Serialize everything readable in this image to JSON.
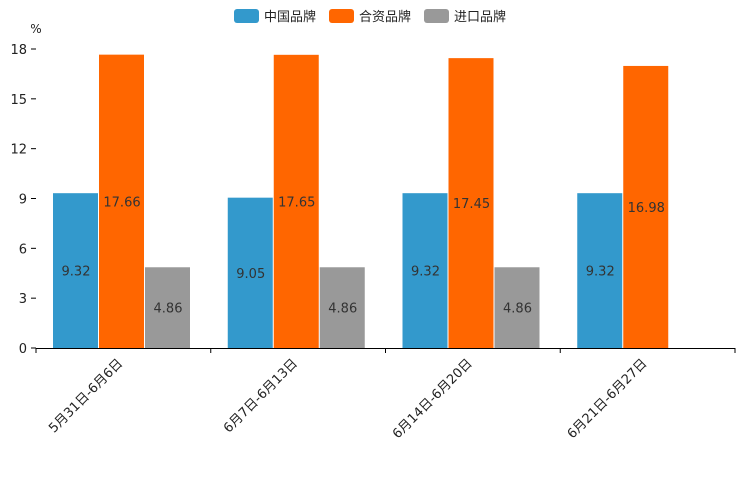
{
  "chart_data": {
    "type": "bar",
    "unit": "%",
    "categories": [
      "5月31日-6月6日",
      "6月7日-6月13日",
      "6月14日-6月20日",
      "6月21日-6月27日"
    ],
    "series": [
      {
        "name": "中国品牌",
        "color": "#3399cc",
        "values": [
          9.32,
          9.05,
          9.32,
          9.32
        ]
      },
      {
        "name": "合资品牌",
        "color": "#ff6600",
        "values": [
          17.66,
          17.65,
          17.45,
          16.98
        ]
      },
      {
        "name": "进口品牌",
        "color": "#999999",
        "values": [
          4.86,
          4.86,
          4.86,
          null
        ]
      }
    ],
    "yticks": [
      0,
      3,
      6,
      9,
      12,
      15,
      18
    ],
    "ylim": [
      0,
      18
    ],
    "legend_position": "top-center",
    "grid": false
  }
}
